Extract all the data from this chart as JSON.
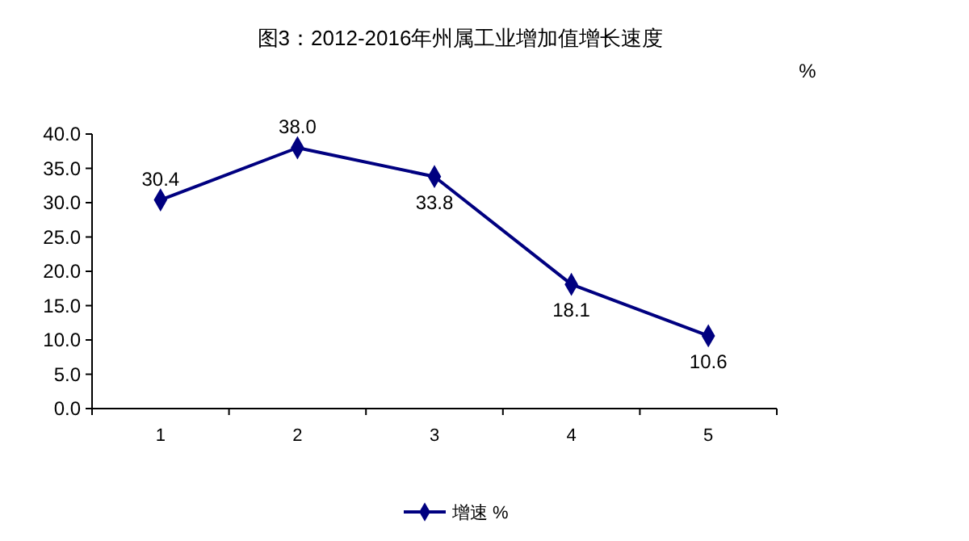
{
  "chart_data": {
    "type": "line",
    "title": "图3：2012-2016年州属工业增加值增长速度",
    "ylabel": "%",
    "categories": [
      "1",
      "2",
      "3",
      "4",
      "5"
    ],
    "series": [
      {
        "name": "增速 %",
        "color": "#000080",
        "values": [
          30.4,
          38.0,
          33.8,
          18.1,
          10.6
        ],
        "value_labels": [
          "30.4",
          "38.0",
          "33.8",
          "18.1",
          "10.6"
        ]
      }
    ],
    "ylim": [
      0,
      40
    ],
    "yticks": [
      {
        "value": 0,
        "label": "0.0"
      },
      {
        "value": 5,
        "label": "5.0"
      },
      {
        "value": 10,
        "label": "10.0"
      },
      {
        "value": 15,
        "label": "15.0"
      },
      {
        "value": 20,
        "label": "20.0"
      },
      {
        "value": 25,
        "label": "25.0"
      },
      {
        "value": 30,
        "label": "30.0"
      },
      {
        "value": 35,
        "label": "35.0"
      },
      {
        "value": 40,
        "label": "40.0"
      }
    ],
    "grid": false,
    "legend": "bottom",
    "marker": "diamond",
    "line_style": "solid"
  }
}
